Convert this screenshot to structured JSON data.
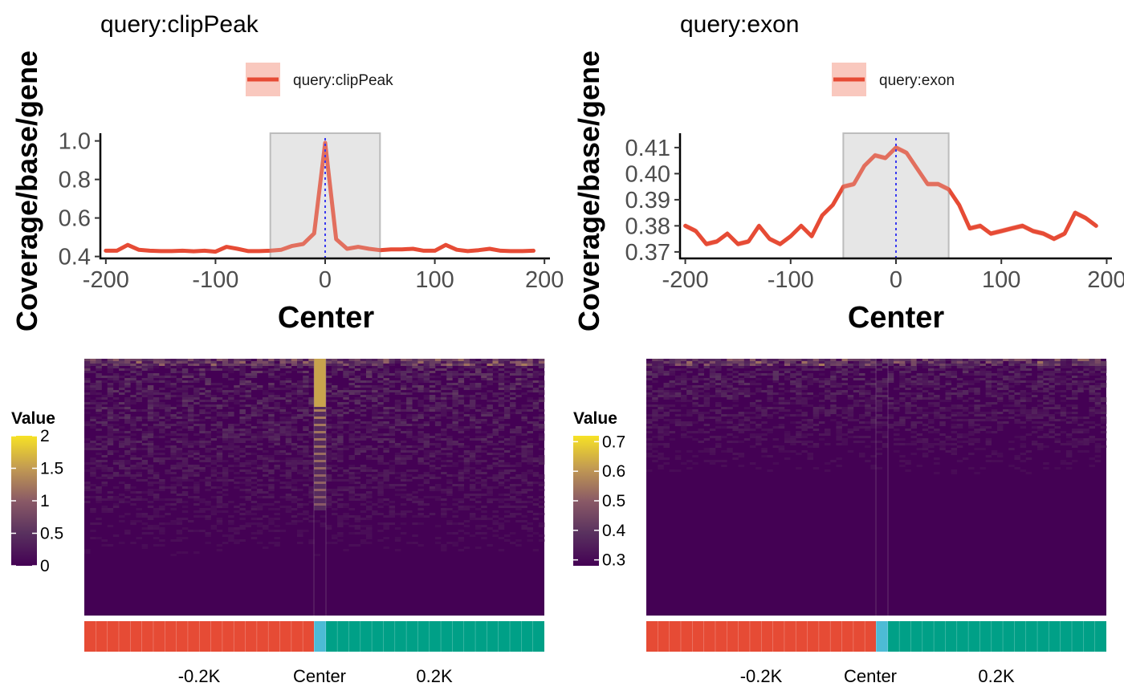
{
  "chart_data": [
    {
      "type": "line",
      "title": "query:clipPeak",
      "xlabel": "Center",
      "ylabel": "Coverage/base/gene",
      "xlim": [
        -205,
        205
      ],
      "ylim": [
        0.39,
        1.04
      ],
      "xticks": [
        -200,
        -100,
        0,
        100,
        200
      ],
      "xtick_labels": [
        "-200",
        "-100",
        "0",
        "100",
        "200"
      ],
      "yticks": [
        0.4,
        0.6,
        0.8,
        1.0
      ],
      "ytick_labels": [
        "0.4",
        "0.6",
        "0.8",
        "1.0"
      ],
      "highlight_region": [
        -50,
        50
      ],
      "center_line": 0,
      "legend": {
        "position": "top",
        "entries": [
          "query:clipPeak"
        ]
      },
      "line_color": "#e64b35",
      "series": [
        {
          "name": "query:clipPeak",
          "x": [
            -200,
            -190,
            -180,
            -170,
            -160,
            -150,
            -140,
            -130,
            -120,
            -110,
            -100,
            -90,
            -80,
            -70,
            -60,
            -50,
            -40,
            -30,
            -20,
            -10,
            0,
            10,
            20,
            30,
            40,
            50,
            60,
            70,
            80,
            90,
            100,
            110,
            120,
            130,
            140,
            150,
            160,
            170,
            180,
            190
          ],
          "values": [
            0.43,
            0.43,
            0.46,
            0.435,
            0.43,
            0.428,
            0.428,
            0.43,
            0.427,
            0.43,
            0.425,
            0.45,
            0.44,
            0.428,
            0.428,
            0.43,
            0.435,
            0.455,
            0.465,
            0.52,
            0.99,
            0.49,
            0.44,
            0.45,
            0.44,
            0.433,
            0.437,
            0.437,
            0.44,
            0.43,
            0.43,
            0.46,
            0.435,
            0.428,
            0.433,
            0.44,
            0.43,
            0.428,
            0.428,
            0.43
          ],
          "band": 0.006
        }
      ],
      "heatmap": {
        "colorbar_title": "Value",
        "colorbar_ticks": [
          2,
          1.5,
          1,
          0.5,
          0
        ],
        "colorbar_tick_labels": [
          "2",
          "1.5",
          "1",
          "0.5",
          "0"
        ],
        "colorbar_range": [
          0,
          2
        ],
        "x_labels": [
          "-0.2K",
          "Center",
          "0.2K"
        ],
        "annotation_colors": {
          "upstream": "#e64b35",
          "center": "#4dbbd5",
          "downstream": "#00a087"
        }
      }
    },
    {
      "type": "line",
      "title": "query:exon",
      "xlabel": "Center",
      "ylabel": "Coverage/base/gene",
      "xlim": [
        -205,
        205
      ],
      "ylim": [
        0.3675,
        0.4155
      ],
      "xticks": [
        -200,
        -100,
        0,
        100,
        200
      ],
      "xtick_labels": [
        "-200",
        "-100",
        "0",
        "100",
        "200"
      ],
      "yticks": [
        0.37,
        0.38,
        0.39,
        0.4,
        0.41
      ],
      "ytick_labels": [
        "0.37",
        "0.38",
        "0.39",
        "0.40",
        "0.41"
      ],
      "highlight_region": [
        -50,
        50
      ],
      "center_line": 0,
      "legend": {
        "position": "top",
        "entries": [
          "query:exon"
        ]
      },
      "line_color": "#e64b35",
      "series": [
        {
          "name": "query:exon",
          "x": [
            -200,
            -190,
            -180,
            -170,
            -160,
            -150,
            -140,
            -130,
            -120,
            -110,
            -100,
            -90,
            -80,
            -70,
            -60,
            -50,
            -40,
            -30,
            -20,
            -10,
            0,
            10,
            20,
            30,
            40,
            50,
            60,
            70,
            80,
            90,
            100,
            110,
            120,
            130,
            140,
            150,
            160,
            170,
            180,
            190
          ],
          "values": [
            0.38,
            0.378,
            0.373,
            0.374,
            0.377,
            0.373,
            0.374,
            0.38,
            0.375,
            0.373,
            0.376,
            0.38,
            0.376,
            0.384,
            0.388,
            0.395,
            0.396,
            0.403,
            0.407,
            0.406,
            0.41,
            0.408,
            0.402,
            0.396,
            0.396,
            0.394,
            0.388,
            0.379,
            0.38,
            0.377,
            0.378,
            0.379,
            0.38,
            0.378,
            0.377,
            0.375,
            0.377,
            0.385,
            0.383,
            0.38
          ],
          "band": 0.001
        }
      ],
      "heatmap": {
        "colorbar_title": "Value",
        "colorbar_ticks": [
          0.7,
          0.6,
          0.5,
          0.4,
          0.3
        ],
        "colorbar_tick_labels": [
          "0.7",
          "0.6",
          "0.5",
          "0.4",
          "0.3"
        ],
        "colorbar_range": [
          0.28,
          0.72
        ],
        "x_labels": [
          "-0.2K",
          "Center",
          "0.2K"
        ],
        "annotation_colors": {
          "upstream": "#e64b35",
          "center": "#4dbbd5",
          "downstream": "#00a087"
        }
      }
    }
  ]
}
